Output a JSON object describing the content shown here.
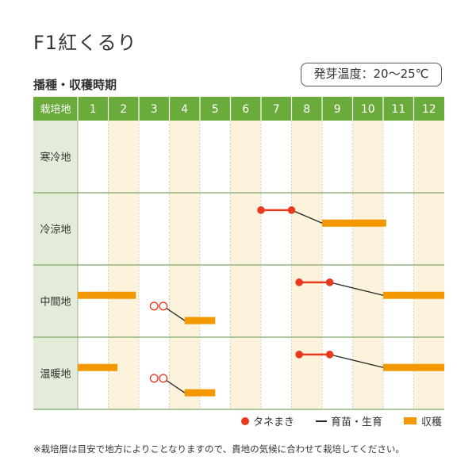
{
  "product": {
    "title": "F1紅くるり"
  },
  "temperature": {
    "text": "発芽温度：20～25℃"
  },
  "section": {
    "title": "播種・収穫時期"
  },
  "colors": {
    "header_green": "#6aab3c",
    "stripe": "#fdf3dc",
    "row_label_bg": "#e3ebd9",
    "sow_red": "#e8381d",
    "harvest_orange": "#f39800",
    "grid_green": "#7fa86a"
  },
  "chart_data": {
    "type": "gantt",
    "header_label": "栽培地",
    "months": [
      "1",
      "2",
      "3",
      "4",
      "5",
      "6",
      "7",
      "8",
      "9",
      "10",
      "11",
      "12"
    ],
    "regions": [
      {
        "name": "寒冷地",
        "sowing": [],
        "growing": [],
        "harvest": []
      },
      {
        "name": "冷涼地",
        "sowing": [
          {
            "start": 7.0,
            "end": 8.0,
            "style": "filled"
          }
        ],
        "growing": [
          {
            "from": 8.0,
            "to": 9.0
          }
        ],
        "harvest": [
          {
            "start": 9.0,
            "end": 11.1
          }
        ]
      },
      {
        "name": "中間地",
        "sowing": [
          {
            "start": 8.25,
            "end": 9.25,
            "style": "filled"
          },
          {
            "start": 3.5,
            "end": 3.8,
            "style": "open"
          }
        ],
        "growing": [
          {
            "from": 9.25,
            "to": 11.0
          },
          {
            "from": 3.8,
            "to": 4.5
          }
        ],
        "harvest": [
          {
            "start": 1.0,
            "end": 2.9
          },
          {
            "start": 11.0,
            "end": 13.0
          },
          {
            "start": 4.5,
            "end": 5.5
          }
        ]
      },
      {
        "name": "温暖地",
        "sowing": [
          {
            "start": 8.25,
            "end": 9.25,
            "style": "filled"
          },
          {
            "start": 3.5,
            "end": 3.8,
            "style": "open"
          }
        ],
        "growing": [
          {
            "from": 9.25,
            "to": 11.0
          },
          {
            "from": 3.8,
            "to": 4.5
          }
        ],
        "harvest": [
          {
            "start": 1.0,
            "end": 2.3
          },
          {
            "start": 11.0,
            "end": 13.0
          },
          {
            "start": 4.5,
            "end": 5.5
          }
        ]
      }
    ]
  },
  "legend": {
    "sow": "タネまき",
    "grow": "育苗・生育",
    "harvest": "収穫"
  },
  "footnote": {
    "text": "※栽培暦は目安で地方によりことなりますので、貴地の気候に合わせて栽培してください。"
  }
}
